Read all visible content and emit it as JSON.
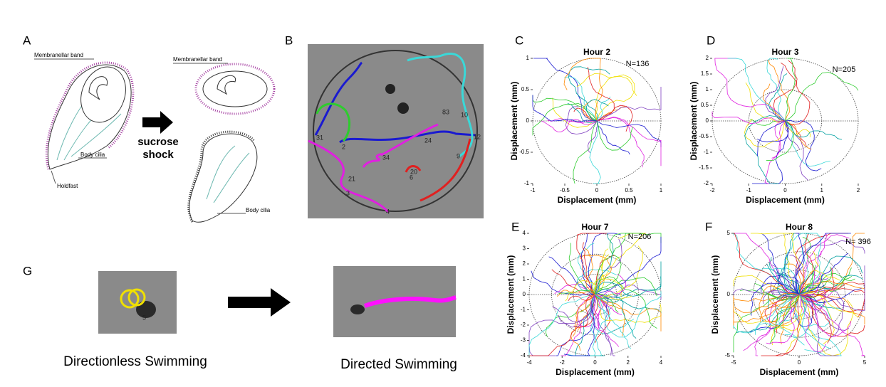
{
  "panels": {
    "A": {
      "label": "A",
      "band_1": "Membranellar band",
      "cilia_1": "Body cilia",
      "holdfast": "Holdfast",
      "band_2": "Membranellar band",
      "cilia_2": "Body cilia",
      "arrow_text": [
        "sucrose",
        "shock"
      ]
    },
    "B": {
      "label": "B",
      "track_labels": [
        "31",
        "2",
        "24",
        "34",
        "21",
        "3",
        "4",
        "20",
        "6",
        "83",
        "10",
        "12",
        "9"
      ]
    },
    "G": {
      "label": "G",
      "track_label": "5",
      "captions": [
        "Directionless Swimming",
        "Directed Swimming"
      ]
    }
  },
  "plots": [
    {
      "label": "C",
      "title": "Hour 2",
      "n": "N=136",
      "xlabel": "Displacement (mm)",
      "ylabel": "Displacement (mm)",
      "xticks": [
        -1,
        -0.5,
        0,
        0.5,
        1
      ],
      "yticks": [
        -1,
        -0.5,
        0,
        0.5,
        1
      ]
    },
    {
      "label": "D",
      "title": "Hour 3",
      "n": "N=205",
      "xlabel": "Displacement (mm)",
      "ylabel": "Displacement (mm)",
      "xticks": [
        -2,
        -1,
        0,
        1,
        2
      ],
      "yticks": [
        -2,
        -1.5,
        -1,
        -0.5,
        0,
        0.5,
        1,
        1.5,
        2
      ]
    },
    {
      "label": "E",
      "title": "Hour 7",
      "n": "N=206",
      "xlabel": "Displacement (mm)",
      "ylabel": "Displacement (mm)",
      "xticks": [
        -4,
        -2,
        0,
        2,
        4
      ],
      "yticks": [
        -4,
        -3,
        -2,
        -1,
        0,
        1,
        2,
        3,
        4
      ]
    },
    {
      "label": "F",
      "title": "Hour 8",
      "n": "N= 396",
      "xlabel": "Displacement (mm)",
      "ylabel": "Displacement (mm)",
      "xticks": [
        -5,
        0,
        5
      ],
      "yticks": [
        -5,
        0,
        5
      ]
    }
  ]
}
